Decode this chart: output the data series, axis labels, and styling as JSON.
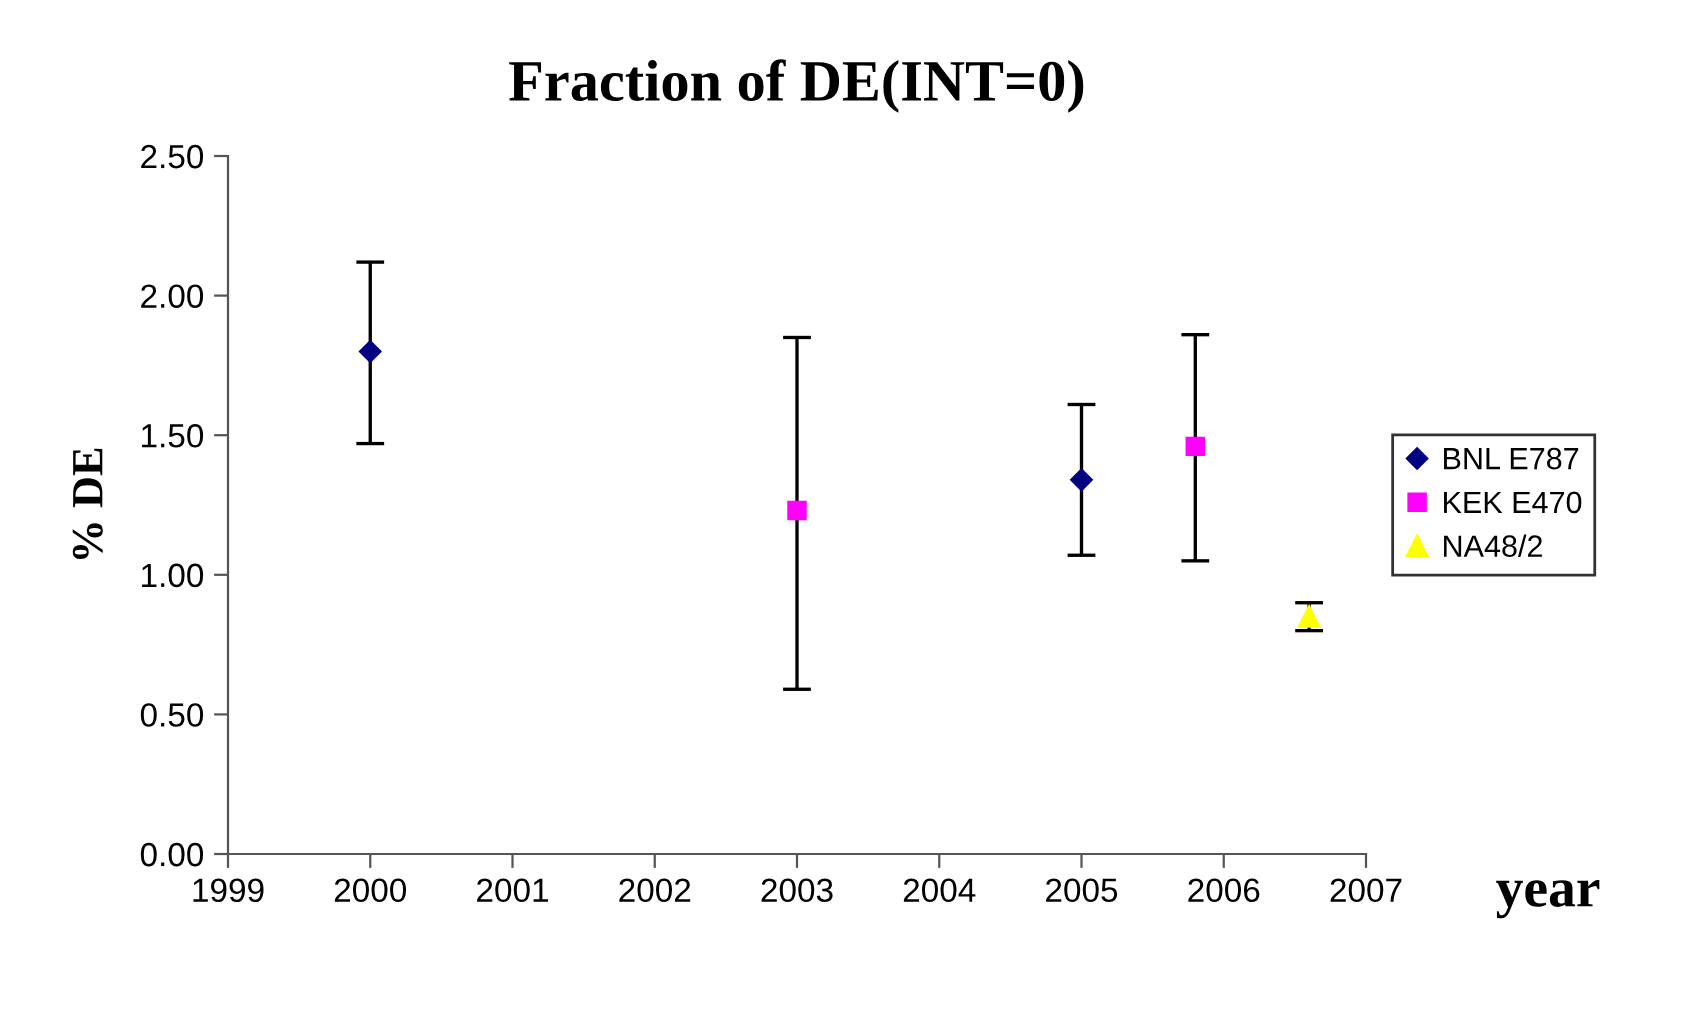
{
  "chart_data": {
    "type": "scatter",
    "title": "Fraction of DE(INT=0)",
    "xlabel": "year",
    "ylabel": "% DE",
    "xlim": [
      1999,
      2007
    ],
    "xticks": [
      1999,
      2000,
      2001,
      2002,
      2003,
      2004,
      2005,
      2006,
      2007
    ],
    "ylim": [
      0,
      2.5
    ],
    "yticks": [
      {
        "value": 0,
        "label": "0.00"
      },
      {
        "value": 0.5,
        "label": "0.50"
      },
      {
        "value": 1,
        "label": "1.00"
      },
      {
        "value": 1.5,
        "label": "1.50"
      },
      {
        "value": 2,
        "label": "2.00"
      },
      {
        "value": 2.5,
        "label": "2.50"
      }
    ],
    "grid": false,
    "legend": "right",
    "series": [
      {
        "name": "BNL E787",
        "color": "#000080",
        "marker": "diamond",
        "x": [
          2000,
          2005
        ],
        "values": [
          1.8,
          1.34
        ],
        "errors": [
          [
            1.47,
            2.12
          ],
          [
            1.07,
            1.61
          ]
        ]
      },
      {
        "name": "KEK E470",
        "color": "#ff00ff",
        "marker": "square",
        "x": [
          2003,
          2005.8
        ],
        "values": [
          1.23,
          1.46
        ],
        "errors": [
          [
            0.59,
            1.85
          ],
          [
            1.05,
            1.86
          ]
        ]
      },
      {
        "name": "NA48/2",
        "color": "#ffff00",
        "marker": "triangle",
        "x": [
          2006.6
        ],
        "values": [
          0.85
        ],
        "errors": [
          [
            0.8,
            0.9
          ]
        ]
      }
    ]
  }
}
